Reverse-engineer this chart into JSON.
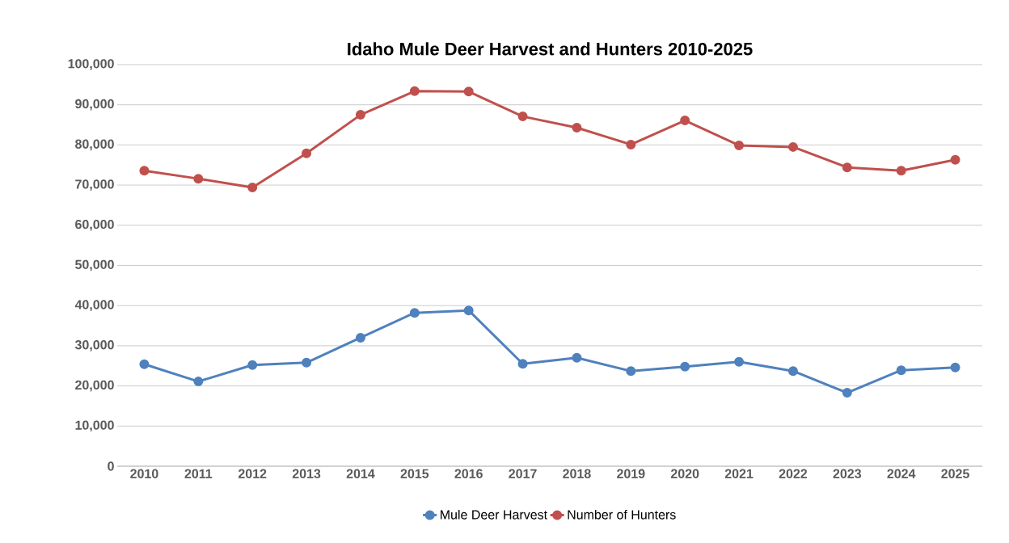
{
  "chart_data": {
    "type": "line",
    "title": "Idaho Mule Deer Harvest and Hunters 2010-2025",
    "categories": [
      "2010",
      "2011",
      "2012",
      "2013",
      "2014",
      "2015",
      "2016",
      "2017",
      "2018",
      "2019",
      "2020",
      "2021",
      "2022",
      "2023",
      "2024",
      "2025"
    ],
    "series": [
      {
        "name": "Mule Deer Harvest",
        "color": "#4f81bd",
        "values": [
          25400,
          21100,
          25200,
          25800,
          32000,
          38200,
          38800,
          25500,
          27000,
          23700,
          24800,
          26000,
          23700,
          18300,
          23900,
          24600
        ]
      },
      {
        "name": "Number of Hunters",
        "color": "#c0504d",
        "values": [
          73600,
          71600,
          69400,
          77900,
          87500,
          93400,
          93300,
          87100,
          84300,
          80100,
          86100,
          79900,
          79500,
          74400,
          73600,
          76300
        ]
      }
    ],
    "ylim": [
      0,
      100000
    ],
    "yticks": [
      {
        "value": 0,
        "label": "0"
      },
      {
        "value": 10000,
        "label": "10,000"
      },
      {
        "value": 20000,
        "label": "20,000"
      },
      {
        "value": 30000,
        "label": "30,000"
      },
      {
        "value": 40000,
        "label": "40,000"
      },
      {
        "value": 50000,
        "label": "50,000"
      },
      {
        "value": 60000,
        "label": "60,000"
      },
      {
        "value": 70000,
        "label": "70,000"
      },
      {
        "value": 80000,
        "label": "80,000"
      },
      {
        "value": 90000,
        "label": "90,000"
      },
      {
        "value": 100000,
        "label": "100,000"
      }
    ],
    "grid": "y",
    "legend": "bottom",
    "marker": "circle",
    "line_style": "solid"
  }
}
